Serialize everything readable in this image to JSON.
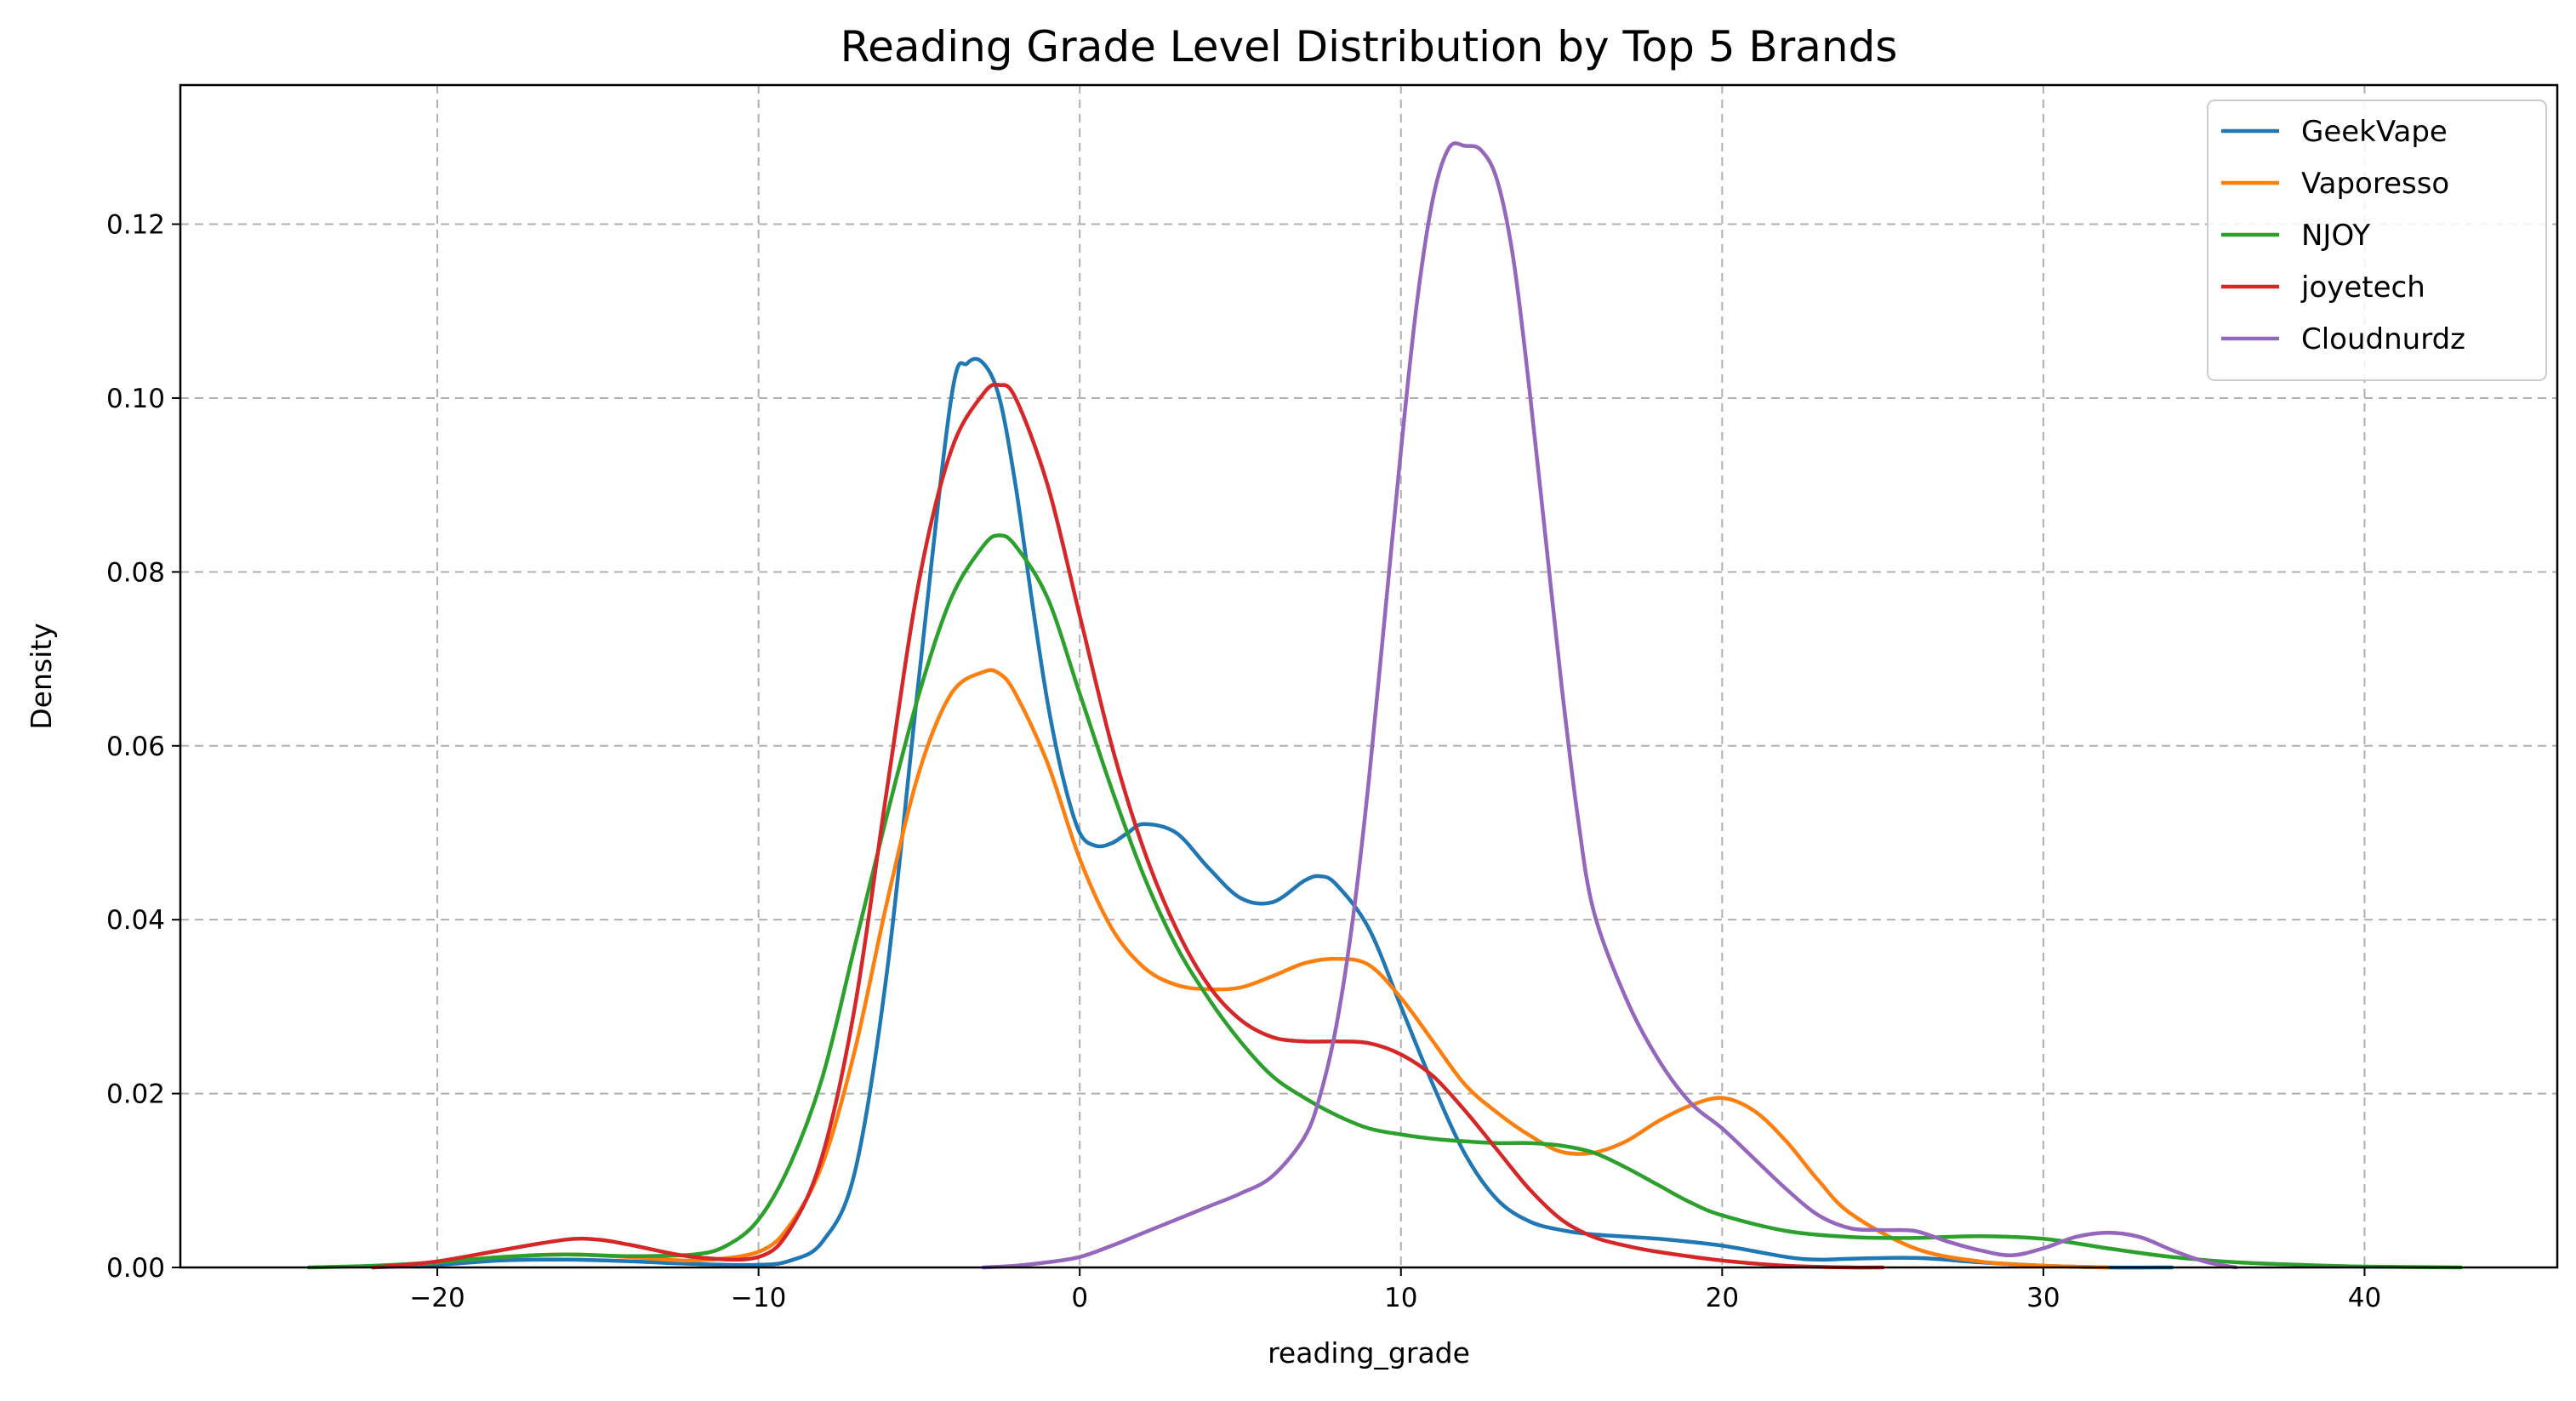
{
  "chart_data": {
    "type": "line",
    "title": "Reading Grade Level Distribution by Top 5 Brands",
    "xlabel": "reading_grade",
    "ylabel": "Density",
    "xlim": [
      -28,
      46
    ],
    "ylim": [
      0,
      0.136
    ],
    "xticks": [
      -20,
      -10,
      0,
      10,
      20,
      30,
      40
    ],
    "xtick_labels": [
      "−20",
      "−10",
      "0",
      "10",
      "20",
      "30",
      "40"
    ],
    "yticks": [
      0.0,
      0.02,
      0.04,
      0.06,
      0.08,
      0.1,
      0.12
    ],
    "ytick_labels": [
      "0.00",
      "0.02",
      "0.04",
      "0.06",
      "0.08",
      "0.10",
      "0.12"
    ],
    "grid": true,
    "legend_position": "top-right",
    "series": [
      {
        "name": "GeekVape",
        "color": "#1f77b4",
        "x": [
          -22,
          -20,
          -18,
          -16,
          -14,
          -12,
          -10,
          -9,
          -8,
          -7,
          -6,
          -5,
          -4,
          -3.5,
          -3,
          -2.5,
          -2,
          -1.5,
          -1,
          -0.5,
          0,
          0.5,
          1,
          1.5,
          2,
          3,
          4,
          5,
          6,
          7,
          7.5,
          8,
          9,
          10,
          11,
          12,
          13,
          14,
          15,
          16,
          18,
          20,
          22,
          23,
          24,
          26,
          28,
          30,
          32,
          34
        ],
        "y": [
          0.0,
          0.0003,
          0.0008,
          0.0009,
          0.0007,
          0.0004,
          0.0003,
          0.0008,
          0.003,
          0.011,
          0.034,
          0.068,
          0.1,
          0.104,
          0.104,
          0.1,
          0.09,
          0.077,
          0.065,
          0.056,
          0.05,
          0.0485,
          0.0488,
          0.05,
          0.051,
          0.05,
          0.046,
          0.0425,
          0.042,
          0.0445,
          0.045,
          0.044,
          0.039,
          0.03,
          0.021,
          0.013,
          0.0078,
          0.0053,
          0.0043,
          0.0038,
          0.0033,
          0.0025,
          0.0012,
          0.0009,
          0.001,
          0.0011,
          0.0006,
          0.0002,
          0.0,
          0.0
        ]
      },
      {
        "name": "Vaporesso",
        "color": "#ff7f0e",
        "x": [
          -22,
          -20,
          -18,
          -16,
          -14,
          -12,
          -10,
          -9,
          -8,
          -7,
          -6,
          -5,
          -4,
          -3,
          -2.5,
          -2,
          -1,
          0,
          1,
          2,
          3,
          4,
          5,
          6,
          7,
          8,
          9,
          10,
          11,
          12,
          13,
          14,
          15,
          16,
          17,
          18,
          19,
          20,
          21,
          22,
          23,
          24,
          26,
          28,
          30,
          32
        ],
        "y": [
          0.0,
          0.0006,
          0.0012,
          0.0015,
          0.0012,
          0.0008,
          0.0018,
          0.005,
          0.012,
          0.025,
          0.042,
          0.057,
          0.066,
          0.0685,
          0.0683,
          0.066,
          0.058,
          0.047,
          0.039,
          0.0345,
          0.0325,
          0.032,
          0.0322,
          0.0335,
          0.035,
          0.0355,
          0.0348,
          0.031,
          0.026,
          0.021,
          0.0178,
          0.0152,
          0.0133,
          0.0132,
          0.0145,
          0.0168,
          0.0186,
          0.0195,
          0.018,
          0.0145,
          0.01,
          0.0062,
          0.0022,
          0.0007,
          0.0002,
          0.0
        ]
      },
      {
        "name": "NJOY",
        "color": "#2ca02c",
        "x": [
          -24,
          -22,
          -20,
          -18,
          -16,
          -14,
          -12,
          -11,
          -10,
          -9,
          -8,
          -7,
          -6,
          -5,
          -4,
          -3,
          -2.5,
          -2,
          -1,
          0,
          1,
          2,
          3,
          4,
          5,
          6,
          7,
          8,
          9,
          10,
          11,
          12,
          13,
          14,
          15,
          16,
          17,
          18,
          19,
          20,
          22,
          24,
          26,
          28,
          30,
          32,
          34,
          36,
          38,
          40,
          43
        ],
        "y": [
          0.0,
          0.0002,
          0.0006,
          0.0012,
          0.0015,
          0.0013,
          0.0015,
          0.0025,
          0.0055,
          0.012,
          0.022,
          0.037,
          0.052,
          0.066,
          0.077,
          0.083,
          0.0842,
          0.083,
          0.077,
          0.066,
          0.055,
          0.045,
          0.037,
          0.031,
          0.026,
          0.022,
          0.0195,
          0.0175,
          0.016,
          0.0153,
          0.0148,
          0.0145,
          0.0143,
          0.0143,
          0.014,
          0.0132,
          0.0115,
          0.0095,
          0.0075,
          0.006,
          0.0042,
          0.0035,
          0.0034,
          0.0036,
          0.0033,
          0.0022,
          0.0012,
          0.0006,
          0.0003,
          0.0001,
          0.0
        ]
      },
      {
        "name": "joyetech",
        "color": "#d62728",
        "x": [
          -22,
          -20,
          -18,
          -16,
          -15,
          -14,
          -12,
          -10,
          -9,
          -8,
          -7,
          -6,
          -5,
          -4,
          -3,
          -2.5,
          -2,
          -1,
          0,
          1,
          2,
          3,
          4,
          5,
          6,
          7,
          8,
          9,
          10,
          11,
          12,
          13,
          14,
          15,
          16,
          17,
          18,
          20,
          22,
          24,
          25
        ],
        "y": [
          0.0,
          0.0007,
          0.002,
          0.0032,
          0.0032,
          0.0026,
          0.0012,
          0.0012,
          0.0045,
          0.013,
          0.03,
          0.055,
          0.079,
          0.094,
          0.1005,
          0.1015,
          0.1,
          0.09,
          0.075,
          0.06,
          0.048,
          0.039,
          0.0325,
          0.0285,
          0.0265,
          0.026,
          0.026,
          0.0258,
          0.0245,
          0.022,
          0.018,
          0.0135,
          0.009,
          0.0055,
          0.0035,
          0.0025,
          0.0018,
          0.0008,
          0.0002,
          0.0,
          0.0
        ]
      },
      {
        "name": "Cloudnurdz",
        "color": "#9467bd",
        "x": [
          -3,
          -2,
          -1,
          0,
          1,
          2,
          3,
          4,
          5,
          6,
          7,
          7.5,
          8,
          8.5,
          9,
          9.5,
          10,
          10.5,
          11,
          11.5,
          12,
          12.5,
          13,
          13.5,
          14,
          14.5,
          15,
          15.5,
          16,
          17,
          18,
          19,
          20,
          21,
          22,
          23,
          24,
          25,
          26,
          27,
          28,
          29,
          30,
          31,
          32,
          33,
          34,
          35,
          36
        ],
        "y": [
          0.0,
          0.0002,
          0.0006,
          0.0012,
          0.0025,
          0.004,
          0.0055,
          0.007,
          0.0085,
          0.0105,
          0.015,
          0.02,
          0.028,
          0.04,
          0.056,
          0.075,
          0.094,
          0.111,
          0.123,
          0.1288,
          0.129,
          0.1285,
          0.125,
          0.116,
          0.101,
          0.084,
          0.067,
          0.052,
          0.041,
          0.031,
          0.024,
          0.019,
          0.016,
          0.0125,
          0.009,
          0.006,
          0.0045,
          0.0043,
          0.0042,
          0.003,
          0.002,
          0.0014,
          0.0022,
          0.0035,
          0.004,
          0.0035,
          0.002,
          0.0007,
          0.0
        ]
      }
    ]
  }
}
